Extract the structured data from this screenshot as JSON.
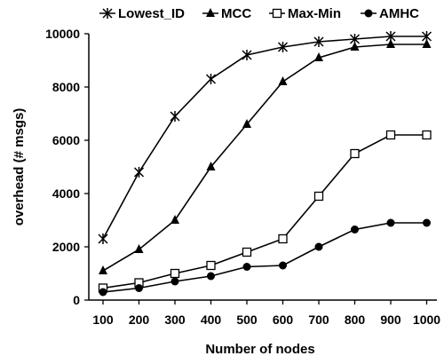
{
  "chart_data": {
    "type": "line",
    "title": "",
    "xlabel": "Number of nodes",
    "ylabel": "overhead (# msgs)",
    "x": [
      100,
      200,
      300,
      400,
      500,
      600,
      700,
      800,
      900,
      1000
    ],
    "ylim": [
      0,
      10000
    ],
    "yticks": [
      0,
      2000,
      4000,
      6000,
      8000,
      10000
    ],
    "grid": false,
    "legend_position": "top",
    "series": [
      {
        "name": "Lowest_ID",
        "marker": "asterisk",
        "values": [
          2300,
          4800,
          6900,
          8300,
          9200,
          9500,
          9700,
          9800,
          9900,
          9900
        ]
      },
      {
        "name": "MCC",
        "marker": "triangle",
        "values": [
          1100,
          1900,
          3000,
          5000,
          6600,
          8200,
          9100,
          9500,
          9600,
          9600
        ]
      },
      {
        "name": "Max-Min",
        "marker": "open-square",
        "values": [
          450,
          650,
          1000,
          1300,
          1800,
          2300,
          3900,
          5500,
          6200,
          6200
        ]
      },
      {
        "name": "AMHC",
        "marker": "filled-circle",
        "values": [
          300,
          450,
          700,
          900,
          1250,
          1300,
          2000,
          2650,
          2900,
          2900
        ]
      }
    ]
  }
}
